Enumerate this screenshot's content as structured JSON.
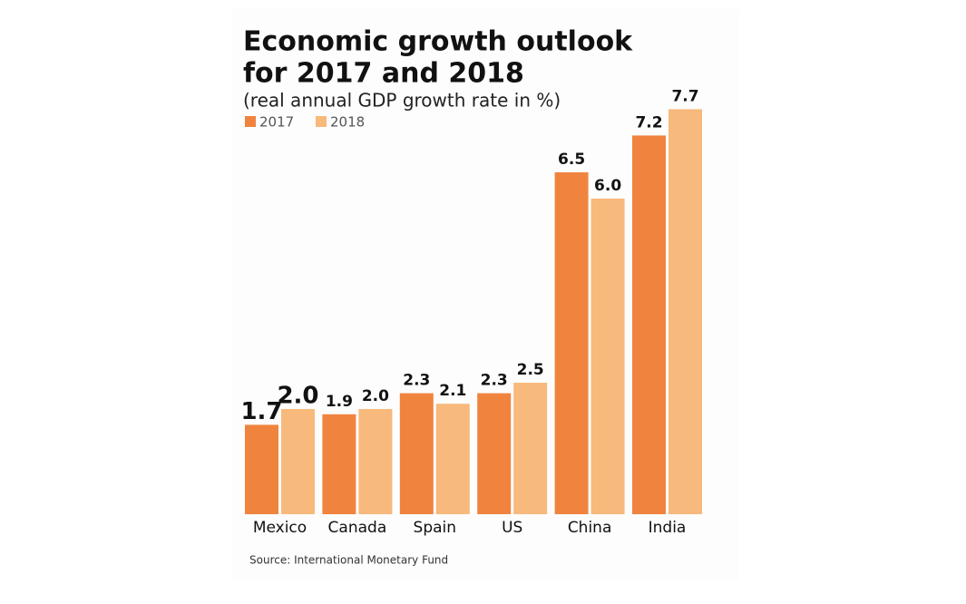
{
  "chart_data": {
    "type": "bar",
    "title": "Economic growth outlook",
    "title_line2": "for 2017 and 2018",
    "subtitle": "(real annual GDP growth rate in %)",
    "categories": [
      "Mexico",
      "Canada",
      "Spain",
      "US",
      "China",
      "India"
    ],
    "series": [
      {
        "name": "2017",
        "color": "#f0843f",
        "values": [
          1.7,
          1.9,
          2.3,
          2.3,
          6.5,
          7.2
        ],
        "value_labels": [
          "1.7",
          "1.9",
          "2.3",
          "2.3",
          "6.5",
          "7.2"
        ]
      },
      {
        "name": "2018",
        "color": "#f7b97c",
        "values": [
          2,
          2,
          2.1,
          2.5,
          6,
          7.7
        ],
        "value_labels": [
          "2.0",
          "2.0",
          "2.1",
          "2.5",
          "6.0",
          "7.7"
        ]
      }
    ],
    "source": "Source: International Monetary Fund"
  }
}
